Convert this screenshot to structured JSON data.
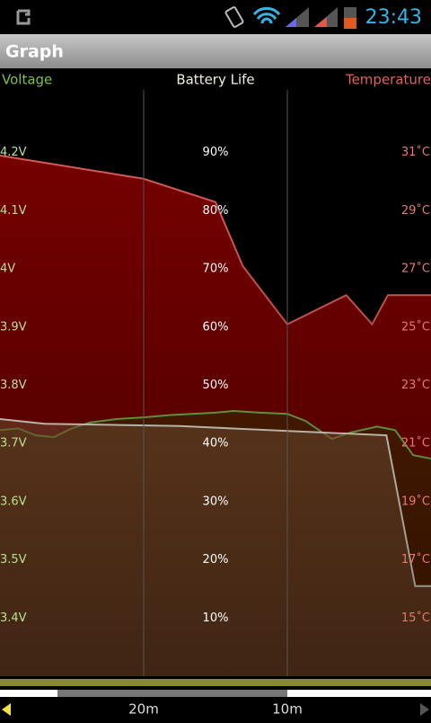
{
  "status_bar": {
    "time": "23:43"
  },
  "app_bar": {
    "title": "Graph"
  },
  "chart_data": {
    "type": "area",
    "xlim": [
      30,
      0
    ],
    "xticks": [
      {
        "value": 20,
        "label": "20m"
      },
      {
        "value": 10,
        "label": "10m"
      }
    ],
    "grid": true,
    "ylim": [
      0,
      100
    ],
    "yticks": [
      {
        "value": 90,
        "label": "90%"
      },
      {
        "value": 80,
        "label": "80%"
      },
      {
        "value": 70,
        "label": "70%"
      },
      {
        "value": 60,
        "label": "60%"
      },
      {
        "value": 50,
        "label": "50%"
      },
      {
        "value": 40,
        "label": "40%"
      },
      {
        "value": 30,
        "label": "30%"
      },
      {
        "value": 20,
        "label": "20%"
      },
      {
        "value": 10,
        "label": "10%"
      }
    ],
    "y2lim": [
      13,
      33
    ],
    "y2ticks": [
      {
        "value": 31,
        "label": "31˚C"
      },
      {
        "value": 29,
        "label": "29˚C"
      },
      {
        "value": 27,
        "label": "27˚C"
      },
      {
        "value": 25,
        "label": "25˚C"
      },
      {
        "value": 23,
        "label": "23˚C"
      },
      {
        "value": 21,
        "label": "21˚C"
      },
      {
        "value": 19,
        "label": "19˚C"
      },
      {
        "value": 17,
        "label": "17˚C"
      },
      {
        "value": 15,
        "label": "15˚C"
      }
    ],
    "y3lim": [
      3.3,
      4.3
    ],
    "y3ticks": [
      {
        "value": 4.2,
        "label": "4.2V"
      },
      {
        "value": 4.1,
        "label": "4.1V"
      },
      {
        "value": 4,
        "label": "4V"
      },
      {
        "value": 3.9,
        "label": "3.9V"
      },
      {
        "value": 3.8,
        "label": "3.8V"
      },
      {
        "value": 3.7,
        "label": "3.7V"
      },
      {
        "value": 3.6,
        "label": "3.6V"
      },
      {
        "value": 3.5,
        "label": "3.5V"
      },
      {
        "value": 3.4,
        "label": "3.4V"
      }
    ],
    "series": [
      {
        "name": "Temperature",
        "axis": "y2",
        "color": "#e0605a",
        "fill": "#7a0000",
        "x": [
          30,
          20,
          15,
          13.1,
          10,
          5.9,
          4.1,
          3,
          0
        ],
        "values": [
          30.9,
          30.1,
          29.3,
          27.1,
          25.1,
          26.1,
          25.1,
          26.1,
          26.1
        ]
      },
      {
        "name": "Voltage",
        "axis": "y3",
        "color": "#7cbf4a",
        "fill": "#3a3a00",
        "x": [
          30,
          28.75,
          27.5,
          26.25,
          25,
          23.75,
          21.9,
          20,
          18.1,
          15,
          13.75,
          11.9,
          10,
          8.75,
          6.9,
          5.6,
          3.75,
          2.5,
          1.25,
          0
        ],
        "values": [
          3.723,
          3.726,
          3.714,
          3.711,
          3.726,
          3.736,
          3.742,
          3.745,
          3.749,
          3.753,
          3.756,
          3.753,
          3.751,
          3.739,
          3.708,
          3.719,
          3.729,
          3.723,
          3.68,
          3.674
        ]
      },
      {
        "name": "Battery Life",
        "axis": "y",
        "color": "#f4f0e0",
        "fill": "#8a6040",
        "x": [
          30,
          26.9,
          17.5,
          3.1,
          1.1,
          0
        ],
        "values": [
          44.2,
          43.4,
          43,
          41.4,
          15.5,
          15.5
        ]
      }
    ]
  }
}
